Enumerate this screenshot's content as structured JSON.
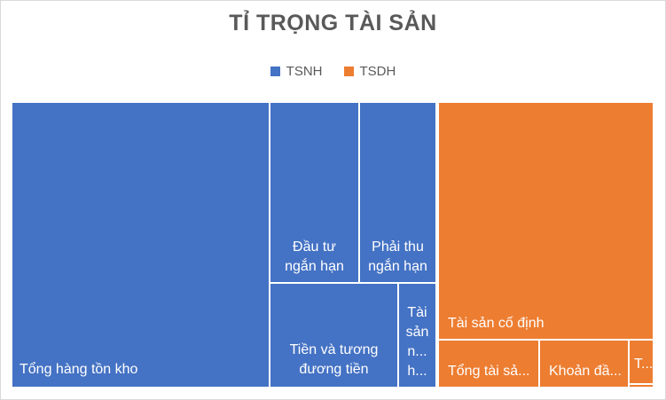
{
  "chart_data": {
    "type": "treemap",
    "title": "TỈ TRỌNG TÀI SẢN",
    "legend": {
      "position": "top",
      "entries": [
        {
          "name": "TSNH",
          "color": "#4472C4"
        },
        {
          "name": "TSDH",
          "color": "#ED7D31"
        }
      ]
    },
    "groups": [
      {
        "name": "TSNH",
        "color": "#4472C4",
        "items": [
          {
            "label": "Tổng hàng tồn kho",
            "share": 0.413
          },
          {
            "label": "Đầu tư\nngắn hạn",
            "share": 0.06
          },
          {
            "label": "Phải thu\nngắn hạn",
            "share": 0.049
          },
          {
            "label": "Tiền và tương\nđương tiền",
            "share": 0.058
          },
          {
            "label": "Tài\nsản\nn...\nh...",
            "share": 0.016
          }
        ]
      },
      {
        "name": "TSDH",
        "color": "#ED7D31",
        "items": [
          {
            "label": "Tài sản cố định",
            "share": 0.318
          },
          {
            "label": "Tổng tài sả...",
            "share": 0.037
          },
          {
            "label": "Khoản đầ...",
            "share": 0.034
          },
          {
            "label": "T...",
            "share": 0.01
          },
          {
            "label": "",
            "share": 0.005
          }
        ]
      }
    ]
  }
}
